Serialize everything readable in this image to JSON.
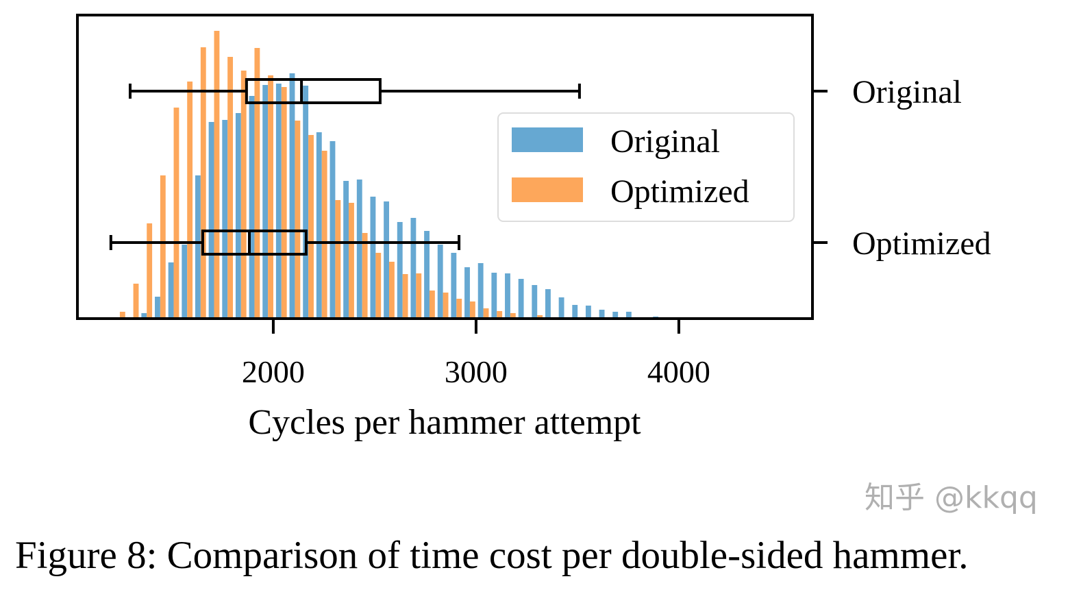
{
  "chart_data": {
    "type": "bar",
    "subtype": "overlaid histogram with horizontal box plots",
    "xlabel": "Cycles per hammer attempt",
    "ylabel": "",
    "xlim": [
      1034,
      4659
    ],
    "ylim": [
      0,
      443
    ],
    "y_units": "relative count (unlabeled axis)",
    "grid": false,
    "x_ticks": [
      2000,
      3000,
      4000
    ],
    "x_tick_labels": [
      "2000",
      "3000",
      "4000"
    ],
    "bin_start": 1210,
    "bin_width": 66.4,
    "colors": {
      "Original": "#66a8d2",
      "Optimized": "#fda75b"
    },
    "series": [
      {
        "name": "Original",
        "values": [
          0,
          1,
          8,
          32,
          82,
          108,
          209,
          287,
          290,
          300,
          325,
          341,
          343,
          358,
          340,
          272,
          259,
          201,
          203,
          178,
          171,
          141,
          147,
          128,
          108,
          96,
          75,
          81,
          67,
          66,
          58,
          49,
          43,
          31,
          20,
          19,
          13,
          10,
          10,
          2,
          3,
          1
        ]
      },
      {
        "name": "Optimized",
        "values": [
          10,
          51,
          139,
          209,
          308,
          346,
          396,
          420,
          382,
          362,
          395,
          355,
          338,
          289,
          268,
          245,
          173,
          169,
          125,
          96,
          83,
          65,
          66,
          41,
          38,
          29,
          25,
          15,
          11,
          8,
          2,
          5,
          0,
          0,
          1,
          0,
          0,
          0,
          0,
          0,
          0,
          0
        ]
      }
    ],
    "boxplots": [
      {
        "name": "Original",
        "whisker_low": 1294,
        "q1": 1868,
        "median": 2139,
        "q3": 2527,
        "whisker_high": 3510
      },
      {
        "name": "Optimized",
        "whisker_low": 1199,
        "q1": 1652,
        "median": 1882,
        "q3": 2162,
        "whisker_high": 2916
      }
    ],
    "right_axis_labels": [
      "Original",
      "Optimized"
    ],
    "legend": {
      "placement": "center-right",
      "entries": [
        "Original",
        "Optimized"
      ]
    }
  },
  "caption": "Figure 8: Comparison of time cost per double-sided hammer.",
  "watermark": "知乎 @kkqq"
}
